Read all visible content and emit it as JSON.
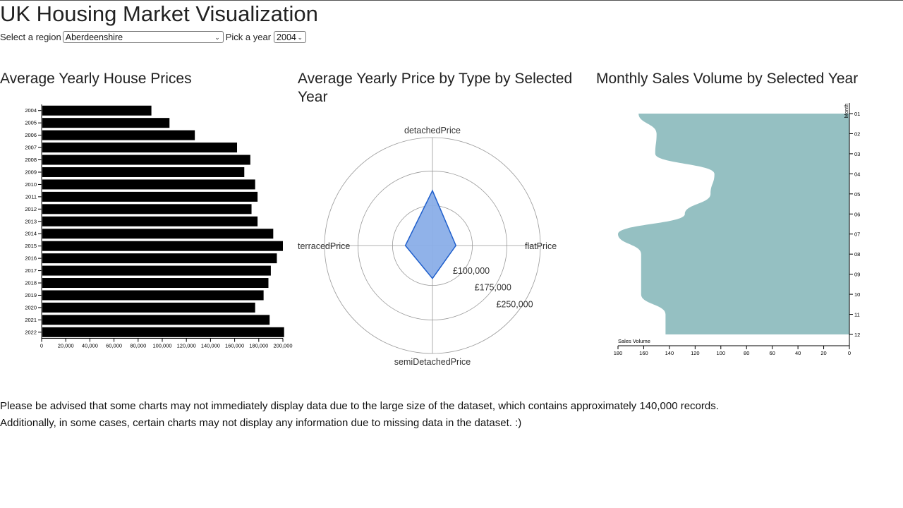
{
  "page": {
    "title": "UK Housing Market Visualization"
  },
  "controls": {
    "region_label": "Select a region",
    "region_value": "Aberdeenshire",
    "year_label": "Pick a year",
    "year_value": "2004"
  },
  "chart_data": [
    {
      "type": "bar",
      "orientation": "horizontal",
      "title": "Average Yearly House Prices",
      "categories": [
        "2004",
        "2005",
        "2006",
        "2007",
        "2008",
        "2009",
        "2010",
        "2011",
        "2012",
        "2013",
        "2014",
        "2015",
        "2016",
        "2017",
        "2018",
        "2019",
        "2020",
        "2021",
        "2022"
      ],
      "values": [
        91000,
        106000,
        127000,
        162000,
        173000,
        168000,
        177000,
        179000,
        174000,
        179000,
        192000,
        200000,
        195000,
        190000,
        188000,
        184000,
        177000,
        189000,
        201000
      ],
      "xlim": [
        0,
        200000
      ],
      "xticks": [
        "0",
        "20,000",
        "40,000",
        "60,000",
        "80,000",
        "100,000",
        "120,000",
        "140,000",
        "160,000",
        "180,000",
        "200,000"
      ],
      "bar_color": "#000000"
    },
    {
      "type": "radar",
      "title": "Average Yearly Price by Type by Selected Year",
      "axes": [
        "detachedPrice",
        "flatPrice",
        "semiDetachedPrice",
        "terracedPrice"
      ],
      "values": [
        150000,
        64000,
        90000,
        74000
      ],
      "rlim": [
        0,
        295000
      ],
      "ring_values": [
        100000,
        175000,
        250000
      ],
      "ring_labels": [
        "£100,000",
        "£175,000",
        "£250,000"
      ],
      "fill_color": "#8aaee8",
      "stroke_color": "#1f5fcc"
    },
    {
      "type": "area",
      "title": "Monthly Sales Volume by Selected Year",
      "categories": [
        "01",
        "02",
        "03",
        "04",
        "05",
        "06",
        "07",
        "08",
        "09",
        "10",
        "11",
        "12"
      ],
      "values": [
        164,
        150,
        151,
        105,
        108,
        128,
        180,
        162,
        162,
        162,
        143,
        143
      ],
      "xlim": [
        180,
        0
      ],
      "xticks": [
        "180",
        "160",
        "140",
        "120",
        "100",
        "80",
        "60",
        "40",
        "20",
        "0"
      ],
      "xlabel": "Sales Volume",
      "ylabel": "Month",
      "fill_color": "#95c0c2"
    }
  ],
  "notes": {
    "line1": "Please be advised that some charts may not immediately display data due to the large size of the dataset, which contains approximately 140,000 records.",
    "line2": "Additionally, in some cases, certain charts may not display any information due to missing data in the dataset. :)"
  }
}
